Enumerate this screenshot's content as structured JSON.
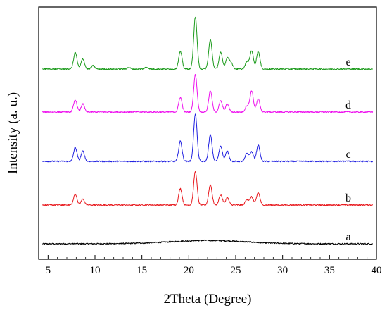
{
  "chart_data": {
    "type": "line",
    "xlabel": "2Theta (Degree)",
    "ylabel": "Intensity (a. u.)",
    "xlim": [
      4,
      40
    ],
    "x_ticks": [
      5,
      10,
      15,
      20,
      25,
      30,
      35,
      40
    ],
    "y_ticks_shown": false,
    "grid": false,
    "legend": "none",
    "series_spacing": 1.0,
    "peak_width": 0.18,
    "series": [
      {
        "label": "a",
        "color": "#000000",
        "peaks": [],
        "baseline": 0.02,
        "hump": {
          "center": 22,
          "height": 0.09,
          "width": 4
        }
      },
      {
        "label": "b",
        "color": "#e8191e",
        "baseline": 0.02,
        "peaks": [
          [
            7.9,
            0.3
          ],
          [
            8.7,
            0.16
          ],
          [
            19.1,
            0.45
          ],
          [
            20.7,
            0.92
          ],
          [
            22.3,
            0.55
          ],
          [
            23.4,
            0.28
          ],
          [
            24.1,
            0.2
          ],
          [
            26.2,
            0.15
          ],
          [
            26.7,
            0.22
          ],
          [
            27.4,
            0.34
          ]
        ]
      },
      {
        "label": "c",
        "color": "#1f1fe0",
        "baseline": 0.02,
        "peaks": [
          [
            7.9,
            0.38
          ],
          [
            8.7,
            0.28
          ],
          [
            19.1,
            0.55
          ],
          [
            20.7,
            1.3
          ],
          [
            22.3,
            0.72
          ],
          [
            23.4,
            0.42
          ],
          [
            24.1,
            0.28
          ],
          [
            26.2,
            0.22
          ],
          [
            26.7,
            0.26
          ],
          [
            27.4,
            0.44
          ]
        ]
      },
      {
        "label": "d",
        "color": "#ee10ee",
        "baseline": 0.02,
        "peaks": [
          [
            7.9,
            0.33
          ],
          [
            8.7,
            0.22
          ],
          [
            19.1,
            0.4
          ],
          [
            20.7,
            1.02
          ],
          [
            22.3,
            0.58
          ],
          [
            23.4,
            0.3
          ],
          [
            24.1,
            0.22
          ],
          [
            26.2,
            0.17
          ],
          [
            26.7,
            0.58
          ],
          [
            27.4,
            0.35
          ]
        ]
      },
      {
        "label": "e",
        "color": "#1a9a1a",
        "baseline": 0.02,
        "peaks": [
          [
            7.9,
            0.45
          ],
          [
            8.7,
            0.28
          ],
          [
            9.8,
            0.09
          ],
          [
            19.1,
            0.48
          ],
          [
            20.7,
            1.42
          ],
          [
            22.3,
            0.8
          ],
          [
            23.4,
            0.45
          ],
          [
            24.1,
            0.3
          ],
          [
            24.5,
            0.18
          ],
          [
            26.2,
            0.2
          ],
          [
            26.7,
            0.5
          ],
          [
            27.4,
            0.48
          ],
          [
            15.5,
            0.05
          ],
          [
            13.6,
            0.04
          ]
        ]
      }
    ]
  }
}
